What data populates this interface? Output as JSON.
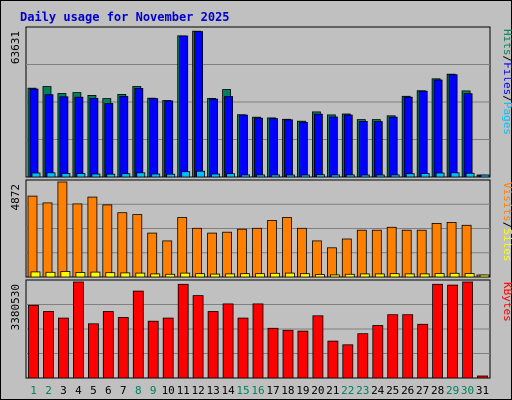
{
  "chart_data": {
    "type": "bar",
    "title": "Daily usage for November 2025",
    "categories": [
      "1",
      "2",
      "3",
      "4",
      "5",
      "6",
      "7",
      "8",
      "9",
      "10",
      "11",
      "12",
      "13",
      "14",
      "15",
      "16",
      "17",
      "18",
      "19",
      "20",
      "21",
      "22",
      "23",
      "24",
      "25",
      "26",
      "27",
      "28",
      "29",
      "30",
      "31"
    ],
    "weekend_days": [
      1,
      2,
      8,
      9,
      15,
      16,
      22,
      23,
      29,
      30
    ],
    "panels": [
      {
        "name": "pages-files-hits",
        "max_label": "63631",
        "max_value": 63631,
        "legend": [
          "Pages",
          "/",
          "Files",
          "/",
          "Hits"
        ],
        "series": [
          {
            "name": "Hits",
            "values": [
              38200,
              38900,
              35900,
              36300,
              35100,
              33700,
              35500,
              38900,
              33900,
              32900,
              60700,
              62700,
              33800,
              37600,
              26800,
              25700,
              25400,
              24800,
              24000,
              28000,
              26700,
              27100,
              24700,
              24700,
              26300,
              34700,
              37100,
              42200,
              44200,
              37000,
              0
            ]
          },
          {
            "name": "Files",
            "values": [
              37800,
              35400,
              34500,
              34300,
              33800,
              31600,
              34600,
              38100,
              33700,
              32700,
              60600,
              62500,
              33500,
              34600,
              26600,
              25300,
              25100,
              24600,
              23500,
              27000,
              25800,
              26600,
              23900,
              23800,
              25700,
              34300,
              36900,
              41700,
              44000,
              35800,
              0
            ]
          },
          {
            "name": "Pages",
            "values": [
              1700,
              1800,
              1500,
              1500,
              1300,
              1200,
              1400,
              1800,
              1300,
              1200,
              2300,
              2500,
              1300,
              1400,
              900,
              900,
              900,
              800,
              800,
              1000,
              900,
              900,
              800,
              800,
              900,
              1400,
              1500,
              1700,
              1800,
              1600,
              0
            ]
          }
        ]
      },
      {
        "name": "sites-visits",
        "max_label": "4872",
        "max_value": 4872,
        "legend": [
          "Sites",
          "/",
          "Visits"
        ],
        "series": [
          {
            "name": "Visits",
            "values": [
              4150,
              3800,
              4872,
              3750,
              4100,
              3700,
              3300,
              3200,
              2250,
              1850,
              3050,
              2500,
              2250,
              2300,
              2450,
              2500,
              2900,
              3050,
              2500,
              1850,
              1500,
              1950,
              2400,
              2400,
              2550,
              2400,
              2400,
              2750,
              2800,
              2650,
              0
            ]
          },
          {
            "name": "Sites",
            "values": [
              260,
              240,
              280,
              230,
              250,
              220,
              210,
              200,
              160,
              140,
              200,
              170,
              150,
              160,
              170,
              170,
              190,
              200,
              170,
              130,
              110,
              140,
              160,
              160,
              170,
              160,
              160,
              180,
              190,
              180,
              0
            ]
          }
        ]
      },
      {
        "name": "kbytes",
        "max_label": "3380530",
        "max_value": 3380530,
        "legend": [
          "KBytes"
        ],
        "series": [
          {
            "name": "KBytes",
            "values": [
              2560000,
              2340000,
              2110000,
              3380530,
              1910000,
              2340000,
              2130000,
              3060000,
              2000000,
              2110000,
              3300000,
              2900000,
              2340000,
              2610000,
              2110000,
              2610000,
              1750000,
              1680000,
              1650000,
              2190000,
              1300000,
              1170000,
              1560000,
              1850000,
              2230000,
              2230000,
              1890000,
              3300000,
              3270000,
              3380530,
              0
            ]
          }
        ]
      }
    ]
  },
  "colors": {
    "background": "#c0c0c0",
    "grid": "#808080",
    "hits": "#00805c",
    "files": "#0000ff",
    "pages": "#00c0ff",
    "visits": "#ff8000",
    "sites": "#ffff00",
    "kbytes": "#ff0000",
    "title": "#0000cc",
    "weekday_label": "#000000",
    "weekend_label": "#00805c"
  }
}
